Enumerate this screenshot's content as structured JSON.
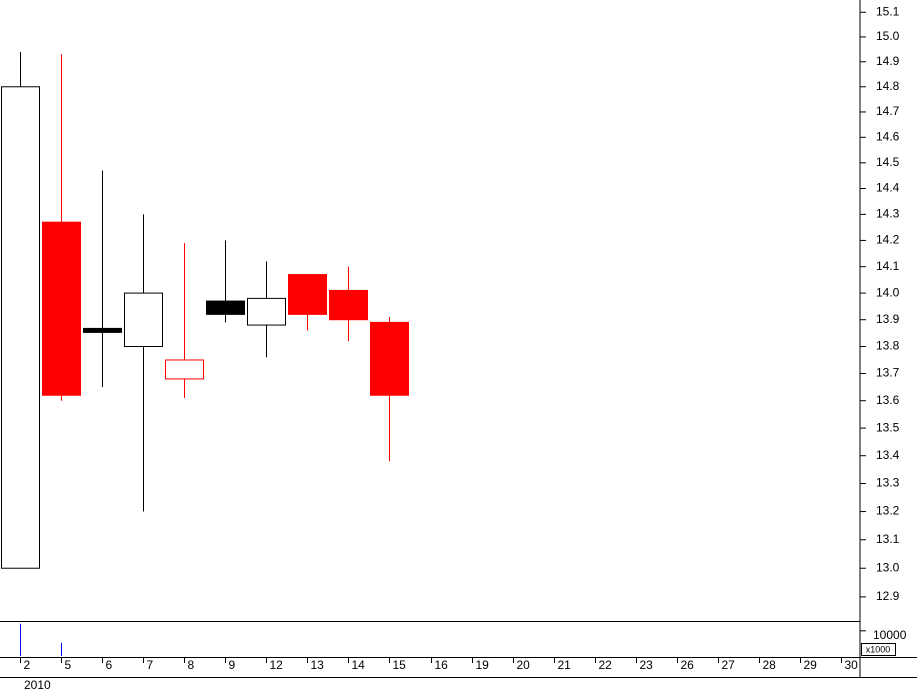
{
  "chart_data": {
    "type": "candlestick",
    "log_scale": true,
    "categories": [
      "2",
      "5",
      "6",
      "7",
      "8",
      "9",
      "12",
      "13",
      "14",
      "15",
      "16",
      "19",
      "20",
      "21",
      "22",
      "23",
      "26",
      "27",
      "28",
      "29",
      "30"
    ],
    "year": "2010",
    "open": [
      13.0,
      14.27,
      13.86,
      13.8,
      13.68,
      13.97,
      13.88,
      14.07,
      14.01,
      13.89,
      null,
      null,
      null,
      null,
      null,
      null,
      null,
      null,
      null,
      null,
      null
    ],
    "high": [
      14.94,
      14.93,
      14.47,
      14.3,
      14.19,
      14.2,
      14.12,
      14.07,
      14.1,
      13.91,
      null,
      null,
      null,
      null,
      null,
      null,
      null,
      null,
      null,
      null,
      null
    ],
    "low": [
      13.0,
      13.6,
      13.65,
      13.2,
      13.61,
      13.89,
      13.76,
      13.86,
      13.82,
      13.38,
      null,
      null,
      null,
      null,
      null,
      null,
      null,
      null,
      null,
      null,
      null
    ],
    "close": [
      14.8,
      13.62,
      13.86,
      14.0,
      13.75,
      13.92,
      13.98,
      13.92,
      13.9,
      13.62,
      null,
      null,
      null,
      null,
      null,
      null,
      null,
      null,
      null,
      null,
      null
    ],
    "up_color": "#000000",
    "down_color": "#ff0000",
    "ylim": [
      12.82,
      15.15
    ],
    "yticks": [
      12.9,
      {
        "value": 13,
        "label": "13.0"
      },
      13.1,
      13.2,
      13.3,
      13.4,
      13.5,
      13.6,
      13.7,
      13.8,
      13.9,
      {
        "value": 14,
        "label": "14.0"
      },
      14.1,
      14.2,
      14.3,
      14.4,
      14.5,
      14.6,
      14.7,
      14.8,
      14.9,
      {
        "value": 15,
        "label": "15.0"
      },
      15.1
    ],
    "volume": {
      "color": "#0000ff",
      "unit": "x1000",
      "values": [
        12800,
        5200,
        0,
        0,
        0,
        0,
        0,
        0,
        0,
        0,
        null,
        null,
        null,
        null,
        null,
        null,
        null,
        null,
        null,
        null,
        null
      ],
      "ylim": [
        0,
        13500
      ],
      "yticks": [
        10000
      ]
    }
  }
}
